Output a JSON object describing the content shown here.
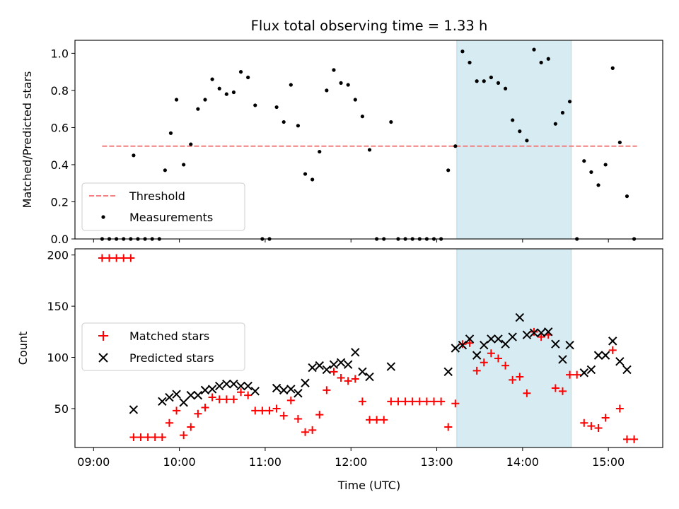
{
  "chart_data": [
    {
      "type": "scatter",
      "title": "Flux total observing time = 1.33 h",
      "xlabel": "",
      "ylabel": "Matched/Predicted stars",
      "xlim": [
        "08:47",
        "15:38"
      ],
      "ylim": [
        0,
        1.07
      ],
      "yticks": [
        "0.0",
        "0.2",
        "0.4",
        "0.6",
        "0.8",
        "1.0"
      ],
      "grid": false,
      "legend_position": "lower-left",
      "highlight_span": {
        "from": "13:14",
        "to": "14:34"
      },
      "threshold": {
        "name": "Threshold",
        "value": 0.5,
        "from": "09:06",
        "to": "15:20",
        "color": "#f07f7f"
      },
      "series": [
        {
          "name": "Measurements",
          "color": "#000000",
          "marker": "dot",
          "points": [
            [
              "09:06",
              0
            ],
            [
              "09:11",
              0
            ],
            [
              "09:16",
              0
            ],
            [
              "09:21",
              0
            ],
            [
              "09:26",
              0
            ],
            [
              "09:31",
              0
            ],
            [
              "09:28",
              0.45
            ],
            [
              "09:36",
              0
            ],
            [
              "09:41",
              0
            ],
            [
              "09:46",
              0
            ],
            [
              "09:50",
              0.37
            ],
            [
              "09:54",
              0.57
            ],
            [
              "09:58",
              0.75
            ],
            [
              "10:03",
              0.4
            ],
            [
              "10:08",
              0.51
            ],
            [
              "10:13",
              0.7
            ],
            [
              "10:18",
              0.75
            ],
            [
              "10:23",
              0.86
            ],
            [
              "10:28",
              0.81
            ],
            [
              "10:33",
              0.78
            ],
            [
              "10:38",
              0.79
            ],
            [
              "10:43",
              0.9
            ],
            [
              "10:48",
              0.87
            ],
            [
              "10:53",
              0.72
            ],
            [
              "10:58",
              0
            ],
            [
              "11:03",
              0
            ],
            [
              "11:08",
              0.71
            ],
            [
              "11:13",
              0.63
            ],
            [
              "11:18",
              0.83
            ],
            [
              "11:23",
              0.61
            ],
            [
              "11:28",
              0.35
            ],
            [
              "11:33",
              0.32
            ],
            [
              "11:38",
              0.47
            ],
            [
              "11:43",
              0.8
            ],
            [
              "11:48",
              0.91
            ],
            [
              "11:53",
              0.84
            ],
            [
              "11:58",
              0.83
            ],
            [
              "12:03",
              0.75
            ],
            [
              "12:08",
              0.66
            ],
            [
              "12:13",
              0.48
            ],
            [
              "12:18",
              0
            ],
            [
              "12:23",
              0
            ],
            [
              "12:28",
              0.63
            ],
            [
              "12:33",
              0
            ],
            [
              "12:38",
              0
            ],
            [
              "12:43",
              0
            ],
            [
              "12:48",
              0
            ],
            [
              "12:53",
              0
            ],
            [
              "12:58",
              0
            ],
            [
              "13:03",
              0
            ],
            [
              "13:08",
              0.37
            ],
            [
              "13:13",
              0.5
            ],
            [
              "13:18",
              1.01
            ],
            [
              "13:23",
              0.95
            ],
            [
              "13:28",
              0.85
            ],
            [
              "13:33",
              0.85
            ],
            [
              "13:38",
              0.87
            ],
            [
              "13:43",
              0.84
            ],
            [
              "13:48",
              0.81
            ],
            [
              "13:53",
              0.64
            ],
            [
              "13:58",
              0.58
            ],
            [
              "14:03",
              0.53
            ],
            [
              "14:08",
              1.02
            ],
            [
              "14:13",
              0.95
            ],
            [
              "14:18",
              0.97
            ],
            [
              "14:23",
              0.62
            ],
            [
              "14:28",
              0.68
            ],
            [
              "14:33",
              0.74
            ],
            [
              "14:38",
              0
            ],
            [
              "14:43",
              0.42
            ],
            [
              "14:48",
              0.36
            ],
            [
              "14:53",
              0.29
            ],
            [
              "14:58",
              0.4
            ],
            [
              "15:03",
              0.92
            ],
            [
              "15:08",
              0.52
            ],
            [
              "15:13",
              0.23
            ],
            [
              "15:18",
              0
            ]
          ]
        }
      ]
    },
    {
      "type": "scatter",
      "xlabel": "Time (UTC)",
      "ylabel": "Count",
      "xlim": [
        "08:47",
        "15:38"
      ],
      "ylim": [
        12,
        206
      ],
      "yticks": [
        "50",
        "100",
        "150",
        "200"
      ],
      "xticks": [
        "09:00",
        "10:00",
        "11:00",
        "12:00",
        "13:00",
        "14:00",
        "15:00"
      ],
      "grid": false,
      "legend_position": "middle-left",
      "highlight_span": {
        "from": "13:14",
        "to": "14:34"
      },
      "series": [
        {
          "name": "Matched stars",
          "color": "#ff0000",
          "marker": "plus",
          "points": [
            [
              "09:06",
              197
            ],
            [
              "09:11",
              197
            ],
            [
              "09:16",
              197
            ],
            [
              "09:21",
              197
            ],
            [
              "09:26",
              197
            ],
            [
              "09:28",
              22
            ],
            [
              "09:33",
              22
            ],
            [
              "09:38",
              22
            ],
            [
              "09:43",
              22
            ],
            [
              "09:48",
              22
            ],
            [
              "09:53",
              36
            ],
            [
              "09:58",
              48
            ],
            [
              "10:03",
              24
            ],
            [
              "10:08",
              32
            ],
            [
              "10:13",
              45
            ],
            [
              "10:18",
              51
            ],
            [
              "10:23",
              61
            ],
            [
              "10:28",
              59
            ],
            [
              "10:33",
              59
            ],
            [
              "10:38",
              59
            ],
            [
              "10:43",
              66
            ],
            [
              "10:48",
              63
            ],
            [
              "10:53",
              48
            ],
            [
              "10:58",
              48
            ],
            [
              "11:03",
              48
            ],
            [
              "11:08",
              50
            ],
            [
              "11:13",
              43
            ],
            [
              "11:18",
              58
            ],
            [
              "11:23",
              40
            ],
            [
              "11:28",
              27
            ],
            [
              "11:33",
              29
            ],
            [
              "11:38",
              44
            ],
            [
              "11:43",
              68
            ],
            [
              "11:48",
              86
            ],
            [
              "11:53",
              80
            ],
            [
              "11:58",
              77
            ],
            [
              "12:03",
              79
            ],
            [
              "12:08",
              57
            ],
            [
              "12:13",
              39
            ],
            [
              "12:18",
              39
            ],
            [
              "12:23",
              39
            ],
            [
              "12:28",
              57
            ],
            [
              "12:33",
              57
            ],
            [
              "12:38",
              57
            ],
            [
              "12:43",
              57
            ],
            [
              "12:48",
              57
            ],
            [
              "12:53",
              57
            ],
            [
              "12:58",
              57
            ],
            [
              "13:03",
              57
            ],
            [
              "13:08",
              32
            ],
            [
              "13:13",
              55
            ],
            [
              "13:18",
              113
            ],
            [
              "13:23",
              114
            ],
            [
              "13:28",
              87
            ],
            [
              "13:33",
              95
            ],
            [
              "13:38",
              104
            ],
            [
              "13:43",
              99
            ],
            [
              "13:48",
              92
            ],
            [
              "13:53",
              78
            ],
            [
              "13:58",
              81
            ],
            [
              "14:03",
              65
            ],
            [
              "14:08",
              125
            ],
            [
              "14:13",
              120
            ],
            [
              "14:18",
              122
            ],
            [
              "14:23",
              70
            ],
            [
              "14:28",
              67
            ],
            [
              "14:33",
              83
            ],
            [
              "14:38",
              83
            ],
            [
              "14:43",
              36
            ],
            [
              "14:48",
              33
            ],
            [
              "14:53",
              31
            ],
            [
              "14:58",
              41
            ],
            [
              "15:03",
              107
            ],
            [
              "15:08",
              50
            ],
            [
              "15:13",
              20
            ],
            [
              "15:18",
              20
            ]
          ]
        },
        {
          "name": "Predicted stars",
          "color": "#000000",
          "marker": "x",
          "points": [
            [
              "09:28",
              49
            ],
            [
              "09:48",
              57
            ],
            [
              "09:53",
              61
            ],
            [
              "09:58",
              64
            ],
            [
              "10:03",
              56
            ],
            [
              "10:08",
              63
            ],
            [
              "10:13",
              63
            ],
            [
              "10:18",
              68
            ],
            [
              "10:23",
              69
            ],
            [
              "10:28",
              72
            ],
            [
              "10:33",
              74
            ],
            [
              "10:38",
              74
            ],
            [
              "10:43",
              72
            ],
            [
              "10:48",
              72
            ],
            [
              "10:53",
              67
            ],
            [
              "11:08",
              70
            ],
            [
              "11:13",
              68
            ],
            [
              "11:18",
              69
            ],
            [
              "11:23",
              65
            ],
            [
              "11:28",
              75
            ],
            [
              "11:33",
              90
            ],
            [
              "11:38",
              92
            ],
            [
              "11:43",
              88
            ],
            [
              "11:48",
              93
            ],
            [
              "11:53",
              95
            ],
            [
              "11:58",
              93
            ],
            [
              "12:03",
              105
            ],
            [
              "12:08",
              86
            ],
            [
              "12:13",
              81
            ],
            [
              "12:28",
              91
            ],
            [
              "13:08",
              86
            ],
            [
              "13:13",
              109
            ],
            [
              "13:18",
              112
            ],
            [
              "13:23",
              118
            ],
            [
              "13:28",
              102
            ],
            [
              "13:33",
              112
            ],
            [
              "13:38",
              118
            ],
            [
              "13:43",
              118
            ],
            [
              "13:48",
              113
            ],
            [
              "13:53",
              120
            ],
            [
              "13:58",
              139
            ],
            [
              "14:03",
              122
            ],
            [
              "14:08",
              124
            ],
            [
              "14:13",
              124
            ],
            [
              "14:18",
              125
            ],
            [
              "14:23",
              113
            ],
            [
              "14:28",
              98
            ],
            [
              "14:33",
              112
            ],
            [
              "14:43",
              85
            ],
            [
              "14:48",
              88
            ],
            [
              "14:53",
              102
            ],
            [
              "14:58",
              102
            ],
            [
              "15:03",
              116
            ],
            [
              "15:08",
              96
            ],
            [
              "15:13",
              88
            ]
          ]
        }
      ]
    }
  ]
}
